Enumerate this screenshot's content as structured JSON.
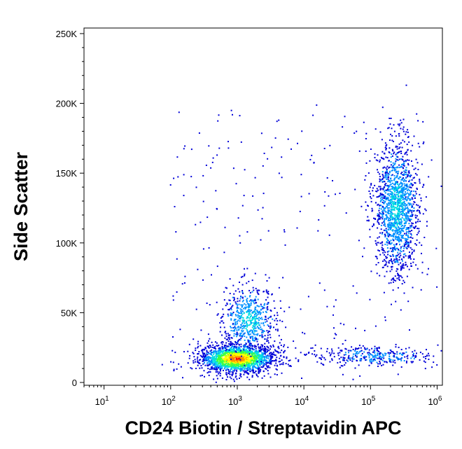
{
  "chart_data": {
    "type": "scatter",
    "subtype": "flow-cytometry-density-dot-plot",
    "xlabel": "CD24 Biotin / Streptavidin APC",
    "ylabel": "Side Scatter",
    "x_scale": "log",
    "y_scale": "linear",
    "xlim": [
      5,
      1200000
    ],
    "ylim": [
      -2000,
      254000
    ],
    "x_ticks": [
      {
        "value": 10,
        "base": "10",
        "exp": "1"
      },
      {
        "value": 100,
        "base": "10",
        "exp": "2"
      },
      {
        "value": 1000,
        "base": "10",
        "exp": "3"
      },
      {
        "value": 10000,
        "base": "10",
        "exp": "4"
      },
      {
        "value": 100000,
        "base": "10",
        "exp": "5"
      },
      {
        "value": 1000000,
        "base": "10",
        "exp": "6"
      }
    ],
    "y_ticks": [
      {
        "value": 0,
        "label": "0"
      },
      {
        "value": 50000,
        "label": "50K"
      },
      {
        "value": 100000,
        "label": "100K"
      },
      {
        "value": 150000,
        "label": "150K"
      },
      {
        "value": 200000,
        "label": "200K"
      },
      {
        "value": 250000,
        "label": "250K"
      }
    ],
    "grid": false,
    "legend": "none",
    "density_colors": [
      "#0000d8",
      "#0090ff",
      "#00e0e0",
      "#40ff40",
      "#ffff00",
      "#ff9000",
      "#ff0000"
    ],
    "populations": [
      {
        "center_x": 1000,
        "center_y": 17000,
        "spread_log_x": 0.28,
        "spread_y": 5000,
        "count": 1900,
        "peak_color": "#ff0000"
      },
      {
        "center_x": 1500,
        "center_y": 45000,
        "spread_log_x": 0.2,
        "spread_y": 12000,
        "count": 600,
        "peak_color": "#00e0e0"
      },
      {
        "center_x": 250000,
        "center_y": 125000,
        "spread_log_x": 0.16,
        "spread_y": 23000,
        "count": 1500,
        "peak_color": "#00e0e0"
      },
      {
        "center_x": 120000,
        "center_y": 19000,
        "spread_log_x": 0.45,
        "spread_y": 3500,
        "count": 320,
        "peak_color": "#0090ff"
      }
    ]
  }
}
